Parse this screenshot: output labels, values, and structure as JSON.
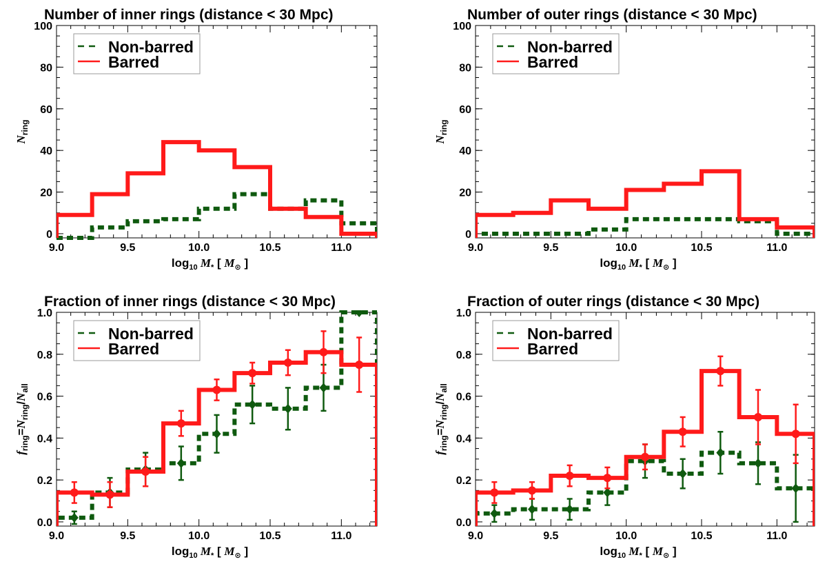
{
  "colors": {
    "barred": "#ff1a1a",
    "nonbarred": "#0f5a0f",
    "axis": "#000000",
    "legend_box": "#9a9a9a"
  },
  "chart_data": [
    {
      "type": "step",
      "title": "Number of inner rings (distance < 30 Mpc)",
      "xlabel": "log10 M* [ M⊙ ]",
      "ylabel": "N_ring",
      "xlim": [
        9.0,
        11.25
      ],
      "ylim": [
        -2,
        100
      ],
      "xticks": [
        "9.0",
        "9.5",
        "10.0",
        "10.5",
        "11.0"
      ],
      "yticks": [
        "0",
        "20",
        "40",
        "60",
        "80",
        "100"
      ],
      "grid": false,
      "legend": {
        "position": "top-left",
        "entries": [
          "Non-barred",
          "Barred"
        ]
      },
      "x": [
        9.125,
        9.375,
        9.625,
        9.875,
        10.125,
        10.375,
        10.625,
        10.875,
        11.125
      ],
      "series": [
        {
          "name": "Barred",
          "values": [
            9,
            19,
            29,
            44,
            40,
            32,
            12,
            8,
            0
          ]
        },
        {
          "name": "Non-barred",
          "values": [
            -2,
            3,
            6,
            7,
            12,
            19,
            12,
            16,
            5
          ]
        }
      ]
    },
    {
      "type": "step",
      "title": "Number of outer rings (distance < 30 Mpc)",
      "xlabel": "log10 M* [ M⊙ ]",
      "ylabel": "N_ring",
      "xlim": [
        9.0,
        11.25
      ],
      "ylim": [
        -2,
        100
      ],
      "xticks": [
        "9.0",
        "9.5",
        "10.0",
        "10.5",
        "11.0"
      ],
      "yticks": [
        "0",
        "20",
        "40",
        "60",
        "80",
        "100"
      ],
      "grid": false,
      "legend": {
        "position": "top-left",
        "entries": [
          "Non-barred",
          "Barred"
        ]
      },
      "x": [
        9.125,
        9.375,
        9.625,
        9.875,
        10.125,
        10.375,
        10.625,
        10.875,
        11.125
      ],
      "series": [
        {
          "name": "Barred",
          "values": [
            9,
            10,
            16,
            12,
            21,
            24,
            30,
            7,
            3
          ]
        },
        {
          "name": "Non-barred",
          "values": [
            0,
            0,
            0,
            2,
            7,
            7,
            7,
            6,
            0
          ]
        }
      ]
    },
    {
      "type": "step",
      "title": "Fraction of inner rings (distance < 30 Mpc)",
      "xlabel": "log10 M* [ M⊙ ]",
      "ylabel": "f_ring = N_ring / N_all",
      "xlim": [
        9.0,
        11.25
      ],
      "ylim": [
        -0.02,
        1.0
      ],
      "xticks": [
        "9.0",
        "9.5",
        "10.0",
        "10.5",
        "11.0"
      ],
      "yticks": [
        "0.0",
        "0.2",
        "0.4",
        "0.6",
        "0.8",
        "1.0"
      ],
      "grid": false,
      "legend": {
        "position": "top-left",
        "entries": [
          "Non-barred",
          "Barred"
        ]
      },
      "x": [
        9.125,
        9.375,
        9.625,
        9.875,
        10.125,
        10.375,
        10.625,
        10.875,
        11.125
      ],
      "series": [
        {
          "name": "Barred",
          "values": [
            0.14,
            0.13,
            0.24,
            0.47,
            0.63,
            0.71,
            0.76,
            0.81,
            0.75
          ],
          "errors": [
            0.05,
            0.06,
            0.07,
            0.06,
            0.05,
            0.05,
            0.06,
            0.1,
            0.13
          ]
        },
        {
          "name": "Non-barred",
          "values": [
            0.02,
            0.14,
            0.25,
            0.28,
            0.42,
            0.56,
            0.54,
            0.64,
            1.0
          ],
          "errors": [
            0.03,
            0.07,
            0.08,
            0.08,
            0.09,
            0.09,
            0.1,
            0.11,
            0.0
          ]
        }
      ]
    },
    {
      "type": "step",
      "title": "Fraction of outer rings (distance < 30 Mpc)",
      "xlabel": "log10 M* [ M⊙ ]",
      "ylabel": "f_ring = N_ring / N_all",
      "xlim": [
        9.0,
        11.25
      ],
      "ylim": [
        -0.02,
        1.0
      ],
      "xticks": [
        "9.0",
        "9.5",
        "10.0",
        "10.5",
        "11.0"
      ],
      "yticks": [
        "0.0",
        "0.2",
        "0.4",
        "0.6",
        "0.8",
        "1.0"
      ],
      "grid": false,
      "legend": {
        "position": "top-left",
        "entries": [
          "Non-barred",
          "Barred"
        ]
      },
      "x": [
        9.125,
        9.375,
        9.625,
        9.875,
        10.125,
        10.375,
        10.625,
        10.875,
        11.125
      ],
      "series": [
        {
          "name": "Barred",
          "values": [
            0.14,
            0.15,
            0.22,
            0.21,
            0.31,
            0.43,
            0.72,
            0.5,
            0.42
          ],
          "errors": [
            0.05,
            0.04,
            0.05,
            0.05,
            0.06,
            0.07,
            0.07,
            0.13,
            0.14
          ]
        },
        {
          "name": "Non-barred",
          "values": [
            0.04,
            0.06,
            0.06,
            0.14,
            0.29,
            0.23,
            0.33,
            0.28,
            0.16
          ],
          "errors": [
            0.04,
            0.05,
            0.05,
            0.06,
            0.08,
            0.07,
            0.1,
            0.1,
            0.16
          ]
        }
      ]
    }
  ]
}
